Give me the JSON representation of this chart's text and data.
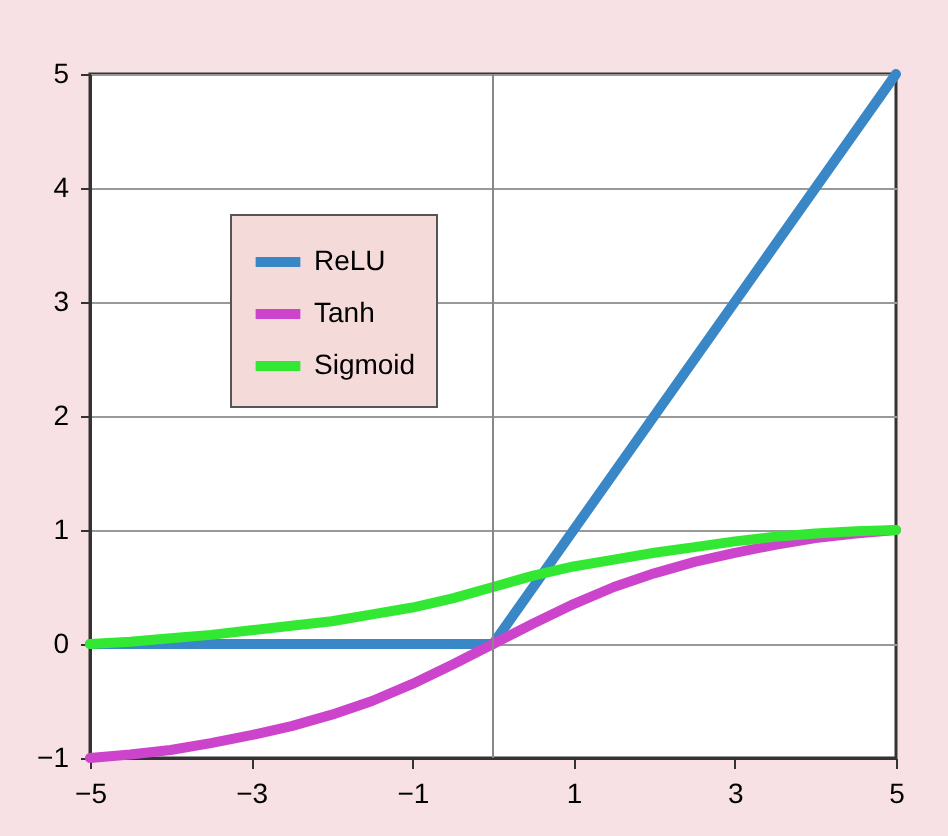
{
  "chart_data": {
    "type": "line",
    "x": [
      -5,
      -4.5,
      -4,
      -3.5,
      -3,
      -2.5,
      -2,
      -1.5,
      -1,
      -0.5,
      0,
      0.5,
      1,
      1.5,
      2,
      2.5,
      3,
      3.5,
      4,
      4.5,
      5
    ],
    "series": [
      {
        "name": "ReLU",
        "color": "#3a87c8",
        "x": [
          -5,
          0,
          5
        ],
        "values": [
          0,
          0,
          5
        ]
      },
      {
        "name": "Tanh",
        "color": "#cc44cc",
        "values": [
          -1,
          -0.97,
          -0.93,
          -0.87,
          -0.8,
          -0.72,
          -0.62,
          -0.5,
          -0.35,
          -0.18,
          0,
          0.18,
          0.35,
          0.5,
          0.62,
          0.72,
          0.8,
          0.87,
          0.93,
          0.97,
          1
        ]
      },
      {
        "name": "Sigmoid",
        "color": "#33e833",
        "values": [
          0,
          0.02,
          0.05,
          0.08,
          0.12,
          0.16,
          0.2,
          0.26,
          0.32,
          0.4,
          0.5,
          0.6,
          0.68,
          0.74,
          0.8,
          0.85,
          0.9,
          0.94,
          0.97,
          0.99,
          1
        ]
      }
    ],
    "xlim": [
      -5,
      5
    ],
    "xticks": [
      -5,
      -3,
      -1,
      1,
      3,
      5
    ],
    "ylim": [
      -1,
      5
    ],
    "yticks": [
      -1,
      0,
      1,
      2,
      3,
      4,
      5
    ],
    "grid": "y",
    "legend": "top left",
    "marker": "none",
    "line_style": "solid",
    "ref_lines": [
      {
        "axis": "x",
        "value": 0,
        "color": "#888888"
      }
    ]
  }
}
